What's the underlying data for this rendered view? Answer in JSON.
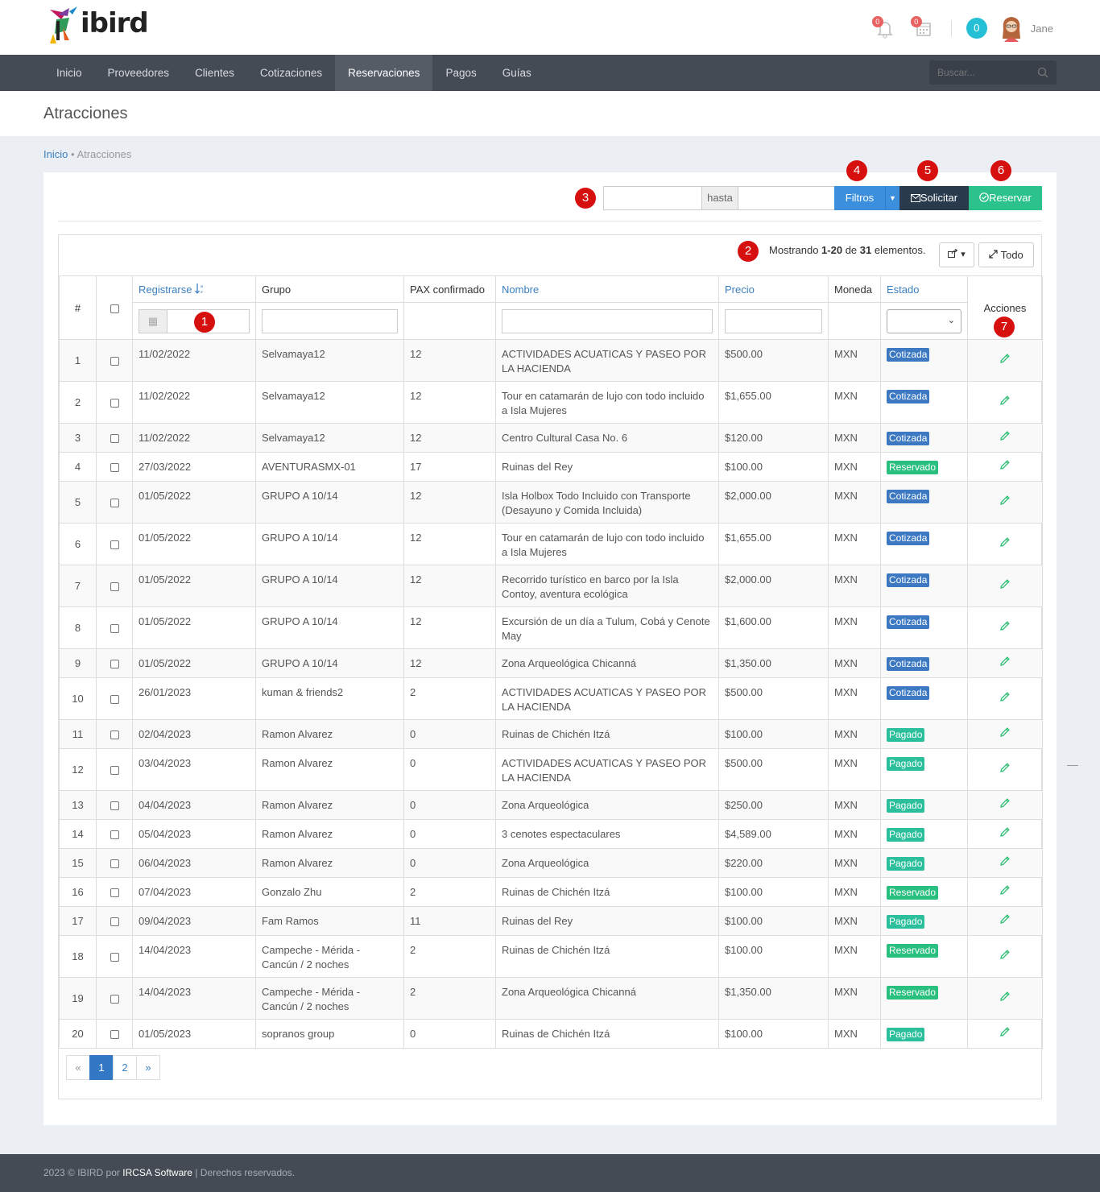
{
  "app": {
    "brand": "ibird",
    "user": "Jane",
    "notif_bell": "0",
    "notif_cal": "0",
    "teal_count": "0"
  },
  "nav": {
    "items": [
      "Inicio",
      "Proveedores",
      "Clientes",
      "Cotizaciones",
      "Reservaciones",
      "Pagos",
      "Guías"
    ],
    "active": "Reservaciones",
    "search_placeholder": "Buscar..."
  },
  "page": {
    "title": "Atracciones",
    "breadcrumb_home": "Inicio",
    "breadcrumb_current": "Atracciones"
  },
  "toolbar": {
    "hasta": "hasta",
    "filtros": "Filtros",
    "solicitar": "Solicitar",
    "reservar": "Reservar"
  },
  "markers": [
    "1",
    "2",
    "3",
    "4",
    "5",
    "6",
    "7"
  ],
  "summary": {
    "prefix": "Mostrando ",
    "range": "1-20",
    "de": " de ",
    "total": "31",
    "suffix": " elementos."
  },
  "buttons": {
    "todo": "Todo"
  },
  "columns": {
    "num": "#",
    "registrarse": "Registrarse",
    "grupo": "Grupo",
    "pax": "PAX confirmado",
    "nombre": "Nombre",
    "precio": "Precio",
    "moneda": "Moneda",
    "estado": "Estado",
    "acciones": "Acciones"
  },
  "status_colors": {
    "Cotizada": "#3d79c2",
    "Reservado": "#29bf7f",
    "Pagado": "#2bbf9c"
  },
  "rows": [
    {
      "n": "1",
      "date": "11/02/2022",
      "grupo": "Selvamaya12",
      "pax": "12",
      "nombre": "ACTIVIDADES ACUATICAS Y PASEO POR LA HACIENDA",
      "precio": "$500.00",
      "moneda": "MXN",
      "estado": "Cotizada"
    },
    {
      "n": "2",
      "date": "11/02/2022",
      "grupo": "Selvamaya12",
      "pax": "12",
      "nombre": "Tour en catamarán de lujo con todo incluido a Isla Mujeres",
      "precio": "$1,655.00",
      "moneda": "MXN",
      "estado": "Cotizada"
    },
    {
      "n": "3",
      "date": "11/02/2022",
      "grupo": "Selvamaya12",
      "pax": "12",
      "nombre": "Centro Cultural Casa No. 6",
      "precio": "$120.00",
      "moneda": "MXN",
      "estado": "Cotizada"
    },
    {
      "n": "4",
      "date": "27/03/2022",
      "grupo": "AVENTURASMX-01",
      "pax": "17",
      "nombre": "Ruinas del Rey",
      "precio": "$100.00",
      "moneda": "MXN",
      "estado": "Reservado"
    },
    {
      "n": "5",
      "date": "01/05/2022",
      "grupo": "GRUPO A 10/14",
      "pax": "12",
      "nombre": "Isla Holbox Todo Incluido con Transporte (Desayuno y Comida Incluida)",
      "precio": "$2,000.00",
      "moneda": "MXN",
      "estado": "Cotizada"
    },
    {
      "n": "6",
      "date": "01/05/2022",
      "grupo": "GRUPO A 10/14",
      "pax": "12",
      "nombre": "Tour en catamarán de lujo con todo incluido a Isla Mujeres",
      "precio": "$1,655.00",
      "moneda": "MXN",
      "estado": "Cotizada"
    },
    {
      "n": "7",
      "date": "01/05/2022",
      "grupo": "GRUPO A 10/14",
      "pax": "12",
      "nombre": "Recorrido turístico en barco por la Isla Contoy, aventura ecológica",
      "precio": "$2,000.00",
      "moneda": "MXN",
      "estado": "Cotizada"
    },
    {
      "n": "8",
      "date": "01/05/2022",
      "grupo": "GRUPO A 10/14",
      "pax": "12",
      "nombre": "Excursión de un día a Tulum, Cobá y Cenote May",
      "precio": "$1,600.00",
      "moneda": "MXN",
      "estado": "Cotizada"
    },
    {
      "n": "9",
      "date": "01/05/2022",
      "grupo": "GRUPO A 10/14",
      "pax": "12",
      "nombre": "Zona Arqueológica Chicanná",
      "precio": "$1,350.00",
      "moneda": "MXN",
      "estado": "Cotizada"
    },
    {
      "n": "10",
      "date": "26/01/2023",
      "grupo": "kuman & friends2",
      "pax": "2",
      "nombre": "ACTIVIDADES ACUATICAS Y PASEO POR LA HACIENDA",
      "precio": "$500.00",
      "moneda": "MXN",
      "estado": "Cotizada"
    },
    {
      "n": "11",
      "date": "02/04/2023",
      "grupo": "Ramon Alvarez",
      "pax": "0",
      "nombre": "Ruinas de Chichén Itzá",
      "precio": "$100.00",
      "moneda": "MXN",
      "estado": "Pagado"
    },
    {
      "n": "12",
      "date": "03/04/2023",
      "grupo": "Ramon Alvarez",
      "pax": "0",
      "nombre": "ACTIVIDADES ACUATICAS Y PASEO POR LA HACIENDA",
      "precio": "$500.00",
      "moneda": "MXN",
      "estado": "Pagado"
    },
    {
      "n": "13",
      "date": "04/04/2023",
      "grupo": "Ramon Alvarez",
      "pax": "0",
      "nombre": "Zona Arqueológica",
      "precio": "$250.00",
      "moneda": "MXN",
      "estado": "Pagado"
    },
    {
      "n": "14",
      "date": "05/04/2023",
      "grupo": "Ramon Alvarez",
      "pax": "0",
      "nombre": "3 cenotes espectaculares",
      "precio": "$4,589.00",
      "moneda": "MXN",
      "estado": "Pagado"
    },
    {
      "n": "15",
      "date": "06/04/2023",
      "grupo": "Ramon Alvarez",
      "pax": "0",
      "nombre": "Zona Arqueológica",
      "precio": "$220.00",
      "moneda": "MXN",
      "estado": "Pagado"
    },
    {
      "n": "16",
      "date": "07/04/2023",
      "grupo": "Gonzalo Zhu",
      "pax": "2",
      "nombre": "Ruinas de Chichén Itzá",
      "precio": "$100.00",
      "moneda": "MXN",
      "estado": "Reservado"
    },
    {
      "n": "17",
      "date": "09/04/2023",
      "grupo": "Fam Ramos",
      "pax": "11",
      "nombre": "Ruinas del Rey",
      "precio": "$100.00",
      "moneda": "MXN",
      "estado": "Pagado"
    },
    {
      "n": "18",
      "date": "14/04/2023",
      "grupo": "Campeche - Mérida - Cancún / 2 noches",
      "pax": "2",
      "nombre": "Ruinas de Chichén Itzá",
      "precio": "$100.00",
      "moneda": "MXN",
      "estado": "Reservado"
    },
    {
      "n": "19",
      "date": "14/04/2023",
      "grupo": "Campeche - Mérida - Cancún / 2 noches",
      "pax": "2",
      "nombre": "Zona Arqueológica Chicanná",
      "precio": "$1,350.00",
      "moneda": "MXN",
      "estado": "Reservado"
    },
    {
      "n": "20",
      "date": "01/05/2023",
      "grupo": "sopranos group",
      "pax": "0",
      "nombre": "Ruinas de Chichén Itzá",
      "precio": "$100.00",
      "moneda": "MXN",
      "estado": "Pagado"
    }
  ],
  "pagination": [
    "«",
    "1",
    "2",
    "»"
  ],
  "footer": {
    "year": "2023 © IBIRD por ",
    "company": "IRCSA Software",
    "sep": " | ",
    "rights": "Derechos reservados."
  }
}
